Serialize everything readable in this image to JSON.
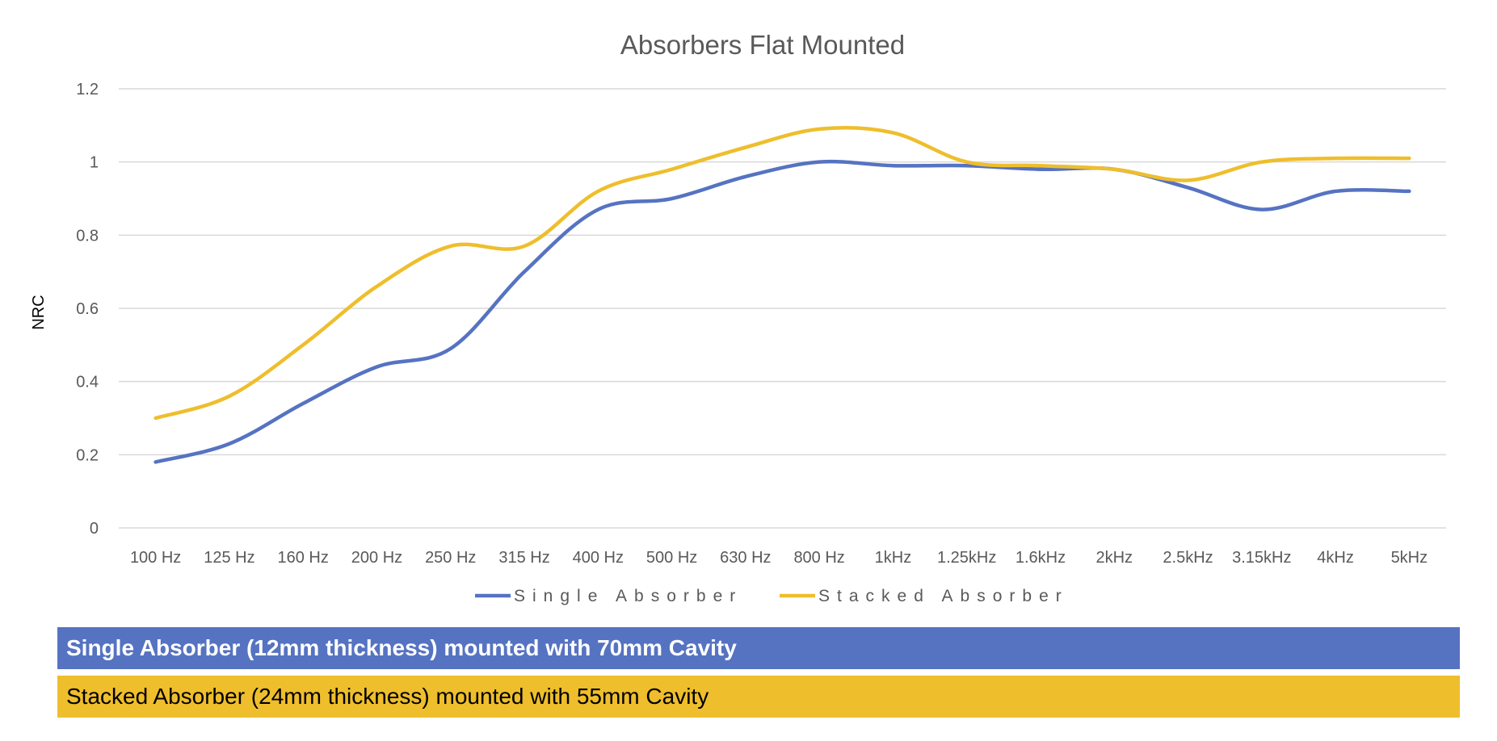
{
  "chart_data": {
    "type": "line",
    "title": "Absorbers Flat Mounted",
    "xlabel": "",
    "ylabel": "NRC",
    "ylim": [
      0,
      1.2
    ],
    "yticks": [
      "0",
      "0.2",
      "0.4",
      "0.6",
      "0.8",
      "1",
      "1.2"
    ],
    "grid": true,
    "legend_position": "bottom",
    "categories": [
      "100 Hz",
      "125 Hz",
      "160 Hz",
      "200 Hz",
      "250 Hz",
      "315 Hz",
      "400 Hz",
      "500 Hz",
      "630 Hz",
      "800 Hz",
      "1kHz",
      "1.25kHz",
      "1.6kHz",
      "2kHz",
      "2.5kHz",
      "3.15kHz",
      "4kHz",
      "5kHz"
    ],
    "series": [
      {
        "name": "Single Absorber",
        "color": "#5673C2",
        "values": [
          0.18,
          0.23,
          0.34,
          0.44,
          0.49,
          0.7,
          0.87,
          0.9,
          0.96,
          1.0,
          0.99,
          0.99,
          0.98,
          0.98,
          0.93,
          0.87,
          0.92,
          0.92
        ]
      },
      {
        "name": "Stacked Absorber",
        "color": "#EEBE2C",
        "values": [
          0.3,
          0.36,
          0.5,
          0.66,
          0.77,
          0.77,
          0.92,
          0.98,
          1.04,
          1.09,
          1.08,
          1.0,
          0.99,
          0.98,
          0.95,
          1.0,
          1.01,
          1.01
        ]
      }
    ]
  },
  "banners": {
    "single": {
      "text": "Single Absorber (12mm thickness) mounted with 70mm Cavity",
      "color": "#5673C2"
    },
    "stacked": {
      "text": "Stacked Absorber (24mm thickness) mounted with 55mm Cavity",
      "color": "#EEBE2C"
    }
  }
}
